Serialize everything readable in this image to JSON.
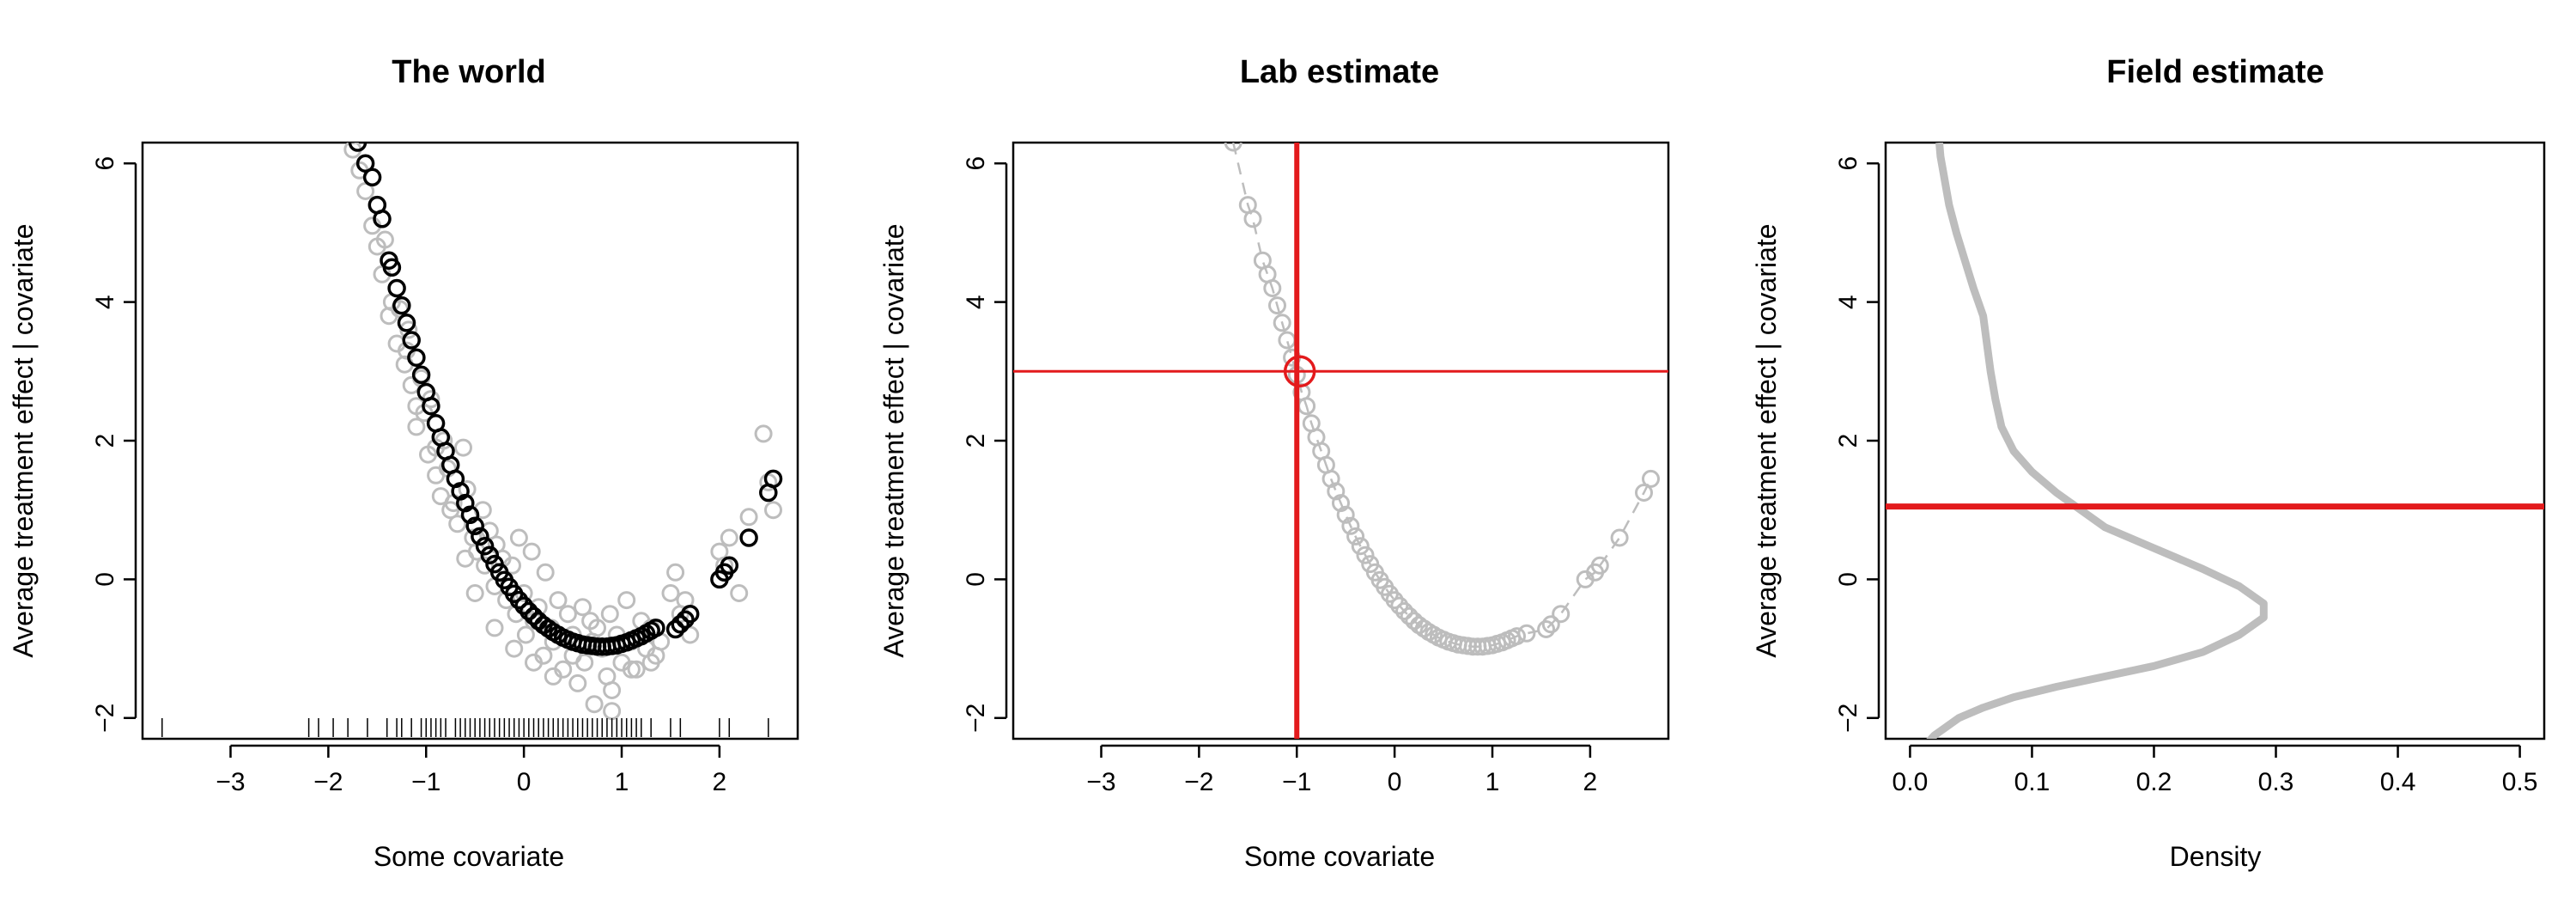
{
  "chart_data": [
    {
      "type": "scatter",
      "title": "The world",
      "xlabel": "Some covariate",
      "ylabel": "Average treatment effect | covariate",
      "xlim": [
        -3.9,
        2.8
      ],
      "ylim": [
        -2.3,
        6.3
      ],
      "xticks": [
        -3,
        -2,
        -1,
        0,
        1,
        2
      ],
      "yticks": [
        -2,
        0,
        2,
        4,
        6
      ],
      "grid": false,
      "series": [
        {
          "style": "gray-points",
          "color": "#bdbdbd",
          "x": [
            -1.75,
            -1.68,
            -1.62,
            -1.55,
            -1.5,
            -1.45,
            -1.42,
            -1.38,
            -1.35,
            -1.3,
            -1.27,
            -1.22,
            -1.18,
            -1.15,
            -1.1,
            -1.05,
            -1.02,
            -0.98,
            -0.95,
            -0.9,
            -0.85,
            -0.82,
            -0.78,
            -0.72,
            -0.68,
            -0.62,
            -0.58,
            -0.52,
            -0.48,
            -0.42,
            -0.4,
            -0.35,
            -0.3,
            -0.28,
            -0.22,
            -0.18,
            -0.12,
            -0.08,
            -0.05,
            0.0,
            0.02,
            0.08,
            0.1,
            0.15,
            0.2,
            0.22,
            0.28,
            0.3,
            0.35,
            0.4,
            0.45,
            0.5,
            0.55,
            0.6,
            0.62,
            0.68,
            0.72,
            0.75,
            0.8,
            0.85,
            0.88,
            0.9,
            0.95,
            1.0,
            1.05,
            1.1,
            1.15,
            1.2,
            1.25,
            1.3,
            1.35,
            1.4,
            1.5,
            1.55,
            1.6,
            1.65,
            1.7,
            2.0,
            2.05,
            2.1,
            2.2,
            2.3,
            2.45,
            2.5,
            2.55,
            -1.3,
            -1.2,
            -1.1,
            -0.9,
            -0.75,
            -0.6,
            -0.5,
            -0.3,
            -0.1,
            0.1,
            0.3,
            0.5,
            0.7,
            0.9,
            1.1,
            1.3
          ],
          "y": [
            6.2,
            5.9,
            5.6,
            5.1,
            4.8,
            4.4,
            4.9,
            3.8,
            4.0,
            3.4,
            3.9,
            3.1,
            3.6,
            2.8,
            2.2,
            2.9,
            2.4,
            1.8,
            2.6,
            1.5,
            1.2,
            2.0,
            1.6,
            1.1,
            0.8,
            1.9,
            1.3,
            0.6,
            0.4,
            1.0,
            0.2,
            0.7,
            -0.1,
            0.5,
            0.3,
            -0.3,
            0.2,
            -0.5,
            0.6,
            -0.2,
            -0.8,
            0.4,
            -0.6,
            -0.4,
            -1.1,
            0.1,
            -0.7,
            -0.9,
            -0.3,
            -1.3,
            -0.5,
            -0.8,
            -1.5,
            -0.4,
            -1.2,
            -0.6,
            -1.8,
            -0.7,
            -1.0,
            -1.4,
            -0.5,
            -1.9,
            -0.8,
            -1.2,
            -0.3,
            -0.9,
            -1.3,
            -0.6,
            -1.0,
            -0.7,
            -1.1,
            -0.9,
            -0.2,
            0.1,
            -0.5,
            -0.3,
            -0.8,
            0.4,
            0.2,
            0.6,
            -0.2,
            0.9,
            2.1,
            1.4,
            1.0,
            4.2,
            3.3,
            2.5,
            1.9,
            1.0,
            0.3,
            -0.2,
            -0.7,
            -1.0,
            -1.2,
            -1.4,
            -1.1,
            -0.9,
            -1.6,
            -1.3,
            -1.2
          ]
        },
        {
          "style": "black-points",
          "color": "#000000",
          "x": [
            -1.7,
            -1.62,
            -1.55,
            -1.5,
            -1.45,
            -1.38,
            -1.35,
            -1.3,
            -1.25,
            -1.2,
            -1.15,
            -1.1,
            -1.05,
            -1.0,
            -0.95,
            -0.9,
            -0.85,
            -0.8,
            -0.75,
            -0.7,
            -0.65,
            -0.6,
            -0.55,
            -0.5,
            -0.45,
            -0.4,
            -0.35,
            -0.3,
            -0.25,
            -0.2,
            -0.15,
            -0.1,
            -0.05,
            0.0,
            0.05,
            0.1,
            0.15,
            0.2,
            0.25,
            0.3,
            0.35,
            0.4,
            0.45,
            0.5,
            0.55,
            0.6,
            0.65,
            0.7,
            0.75,
            0.8,
            0.85,
            0.9,
            0.95,
            1.0,
            1.05,
            1.1,
            1.15,
            1.2,
            1.25,
            1.3,
            1.35,
            1.55,
            1.6,
            1.65,
            1.7,
            2.0,
            2.05,
            2.1,
            2.3,
            2.5,
            2.55
          ],
          "y": [
            6.3,
            6.0,
            5.8,
            5.4,
            5.2,
            4.6,
            4.5,
            4.2,
            3.95,
            3.7,
            3.45,
            3.2,
            2.95,
            2.7,
            2.5,
            2.25,
            2.05,
            1.85,
            1.65,
            1.45,
            1.27,
            1.1,
            0.93,
            0.77,
            0.62,
            0.48,
            0.35,
            0.22,
            0.1,
            -0.01,
            -0.11,
            -0.21,
            -0.3,
            -0.38,
            -0.46,
            -0.53,
            -0.6,
            -0.66,
            -0.71,
            -0.76,
            -0.8,
            -0.84,
            -0.87,
            -0.9,
            -0.92,
            -0.94,
            -0.95,
            -0.96,
            -0.97,
            -0.97,
            -0.97,
            -0.96,
            -0.95,
            -0.93,
            -0.91,
            -0.88,
            -0.85,
            -0.82,
            -0.78,
            -0.74,
            -0.7,
            -0.72,
            -0.65,
            -0.58,
            -0.5,
            0.0,
            0.1,
            0.2,
            0.6,
            1.25,
            1.45
          ]
        }
      ],
      "rug_x": [
        -3.7,
        -2.2,
        -2.1,
        -1.95,
        -1.8,
        -1.6,
        -1.4,
        -1.3,
        -1.25,
        -1.15,
        -1.05,
        -1.0,
        -0.95,
        -0.9,
        -0.85,
        -0.8,
        -0.7,
        -0.65,
        -0.6,
        -0.55,
        -0.5,
        -0.45,
        -0.4,
        -0.35,
        -0.3,
        -0.25,
        -0.2,
        -0.15,
        -0.1,
        -0.05,
        0.0,
        0.05,
        0.1,
        0.15,
        0.2,
        0.25,
        0.3,
        0.35,
        0.4,
        0.45,
        0.5,
        0.55,
        0.6,
        0.65,
        0.7,
        0.75,
        0.8,
        0.85,
        0.9,
        0.95,
        1.0,
        1.05,
        1.1,
        1.15,
        1.2,
        1.3,
        1.5,
        1.6,
        2.0,
        2.1,
        2.5
      ]
    },
    {
      "type": "scatter",
      "title": "Lab estimate",
      "xlabel": "Some covariate",
      "ylabel": "Average treatment effect | covariate",
      "xlim": [
        -3.9,
        2.8
      ],
      "ylim": [
        -2.3,
        6.3
      ],
      "xticks": [
        -3,
        -2,
        -1,
        0,
        1,
        2
      ],
      "yticks": [
        -2,
        0,
        2,
        4,
        6
      ],
      "grid": false,
      "series": [
        {
          "style": "gray-curve-points",
          "color": "#bdbdbd",
          "x": [
            -1.65,
            -1.5,
            -1.45,
            -1.35,
            -1.3,
            -1.25,
            -1.2,
            -1.15,
            -1.1,
            -1.05,
            -1.0,
            -0.95,
            -0.9,
            -0.85,
            -0.8,
            -0.75,
            -0.7,
            -0.65,
            -0.6,
            -0.55,
            -0.5,
            -0.45,
            -0.4,
            -0.35,
            -0.3,
            -0.25,
            -0.2,
            -0.15,
            -0.1,
            -0.05,
            0.0,
            0.05,
            0.1,
            0.15,
            0.2,
            0.25,
            0.3,
            0.35,
            0.4,
            0.45,
            0.5,
            0.55,
            0.6,
            0.65,
            0.7,
            0.75,
            0.8,
            0.85,
            0.9,
            0.95,
            1.0,
            1.05,
            1.1,
            1.15,
            1.2,
            1.25,
            1.35,
            1.55,
            1.6,
            1.7,
            1.95,
            2.05,
            2.1,
            2.3,
            2.55,
            2.62
          ],
          "y": [
            6.3,
            5.4,
            5.2,
            4.6,
            4.4,
            4.2,
            3.95,
            3.7,
            3.45,
            3.2,
            2.95,
            2.7,
            2.5,
            2.25,
            2.05,
            1.85,
            1.65,
            1.45,
            1.27,
            1.1,
            0.93,
            0.77,
            0.62,
            0.48,
            0.35,
            0.22,
            0.1,
            -0.01,
            -0.11,
            -0.21,
            -0.3,
            -0.38,
            -0.46,
            -0.53,
            -0.6,
            -0.66,
            -0.71,
            -0.76,
            -0.8,
            -0.84,
            -0.87,
            -0.9,
            -0.92,
            -0.94,
            -0.95,
            -0.96,
            -0.97,
            -0.97,
            -0.97,
            -0.96,
            -0.95,
            -0.93,
            -0.91,
            -0.88,
            -0.85,
            -0.82,
            -0.78,
            -0.72,
            -0.65,
            -0.5,
            0.0,
            0.1,
            0.2,
            0.6,
            1.25,
            1.45
          ]
        }
      ],
      "vline_x": -1,
      "hline_y": 3,
      "highlight_point": {
        "x": -0.97,
        "y": 3.0
      },
      "accent_color": "#e31a1c"
    },
    {
      "type": "line",
      "title": "Field estimate",
      "xlabel": "Density",
      "ylabel": "Average treatment effect | covariate",
      "xlim": [
        -0.02,
        0.52
      ],
      "ylim": [
        -2.3,
        6.3
      ],
      "xticks": [
        0.0,
        0.1,
        0.2,
        0.3,
        0.4,
        0.5
      ],
      "yticks": [
        -2,
        0,
        2,
        4,
        6
      ],
      "grid": false,
      "series": [
        {
          "style": "density-curve",
          "color": "#bdbdbd",
          "x": [
            0.015,
            0.02,
            0.028,
            0.04,
            0.06,
            0.085,
            0.12,
            0.16,
            0.2,
            0.24,
            0.27,
            0.29,
            0.29,
            0.27,
            0.24,
            0.2,
            0.16,
            0.14,
            0.12,
            0.1,
            0.085,
            0.075,
            0.07,
            0.066,
            0.063,
            0.06,
            0.052,
            0.045,
            0.038,
            0.032,
            0.028,
            0.025,
            0.024
          ],
          "y": [
            -2.35,
            -2.25,
            -2.15,
            -2.0,
            -1.85,
            -1.7,
            -1.55,
            -1.4,
            -1.25,
            -1.05,
            -0.8,
            -0.55,
            -0.35,
            -0.1,
            0.15,
            0.45,
            0.75,
            1.0,
            1.25,
            1.55,
            1.85,
            2.2,
            2.6,
            3.0,
            3.4,
            3.8,
            4.2,
            4.6,
            5.0,
            5.4,
            5.8,
            6.1,
            6.3
          ]
        }
      ],
      "hline_y": 1.05,
      "accent_color": "#e31a1c"
    }
  ]
}
